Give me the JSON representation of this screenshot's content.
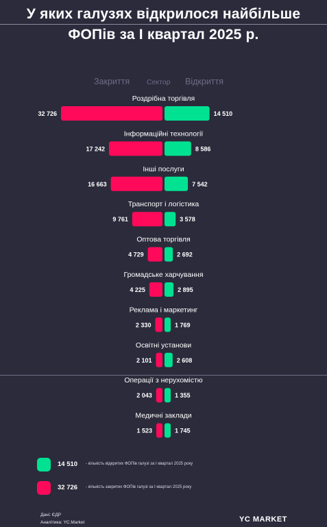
{
  "title_line1": "У яких галузях відкрилося найбільше",
  "title_line2": "ФОПів за І квартал 2025 р.",
  "column_headers": {
    "left": "Закриття",
    "center": "Сектор",
    "right": "Відкриття"
  },
  "colors": {
    "background": "#2c2b3c",
    "closed": "#ff0a5a",
    "opened": "#00e291"
  },
  "chart_data": {
    "type": "bar",
    "orientation": "horizontal-diverging",
    "categories": [
      "Роздрібна торгівля",
      "Інформаційні технології",
      "Інші послуги",
      "Транспорт і логістика",
      "Оптова торгівля",
      "Громадське харчування",
      "Реклама і маркетинг",
      "Освітні установи",
      "Операції з нерухомістю",
      "Медичні заклади"
    ],
    "series": [
      {
        "name": "Закриття",
        "values": [
          32726,
          17242,
          16663,
          9761,
          4729,
          4225,
          2330,
          2101,
          2043,
          1523
        ],
        "labels": [
          "32 726",
          "17 242",
          "16 663",
          "9 761",
          "4 729",
          "4 225",
          "2 330",
          "2 101",
          "2 043",
          "1 523"
        ]
      },
      {
        "name": "Відкриття",
        "values": [
          14510,
          8586,
          7542,
          3578,
          2692,
          2895,
          1769,
          2608,
          1355,
          1745
        ],
        "labels": [
          "14 510",
          "8 586",
          "7 542",
          "3 578",
          "2 692",
          "2 895",
          "1 769",
          "2 608",
          "1 355",
          "1 745"
        ]
      }
    ]
  },
  "legend": [
    {
      "value": "14 510",
      "text": "- кількість відкритих ФОПів галузі за І квартал 2025 року"
    },
    {
      "value": "32 726",
      "text": "- кількість закритих ФОПів галузі за І квартал 2025 року"
    }
  ],
  "source": "Дані: ЄДР",
  "analytics": "Аналітика: YC.Market",
  "brand": "YC MARKET"
}
